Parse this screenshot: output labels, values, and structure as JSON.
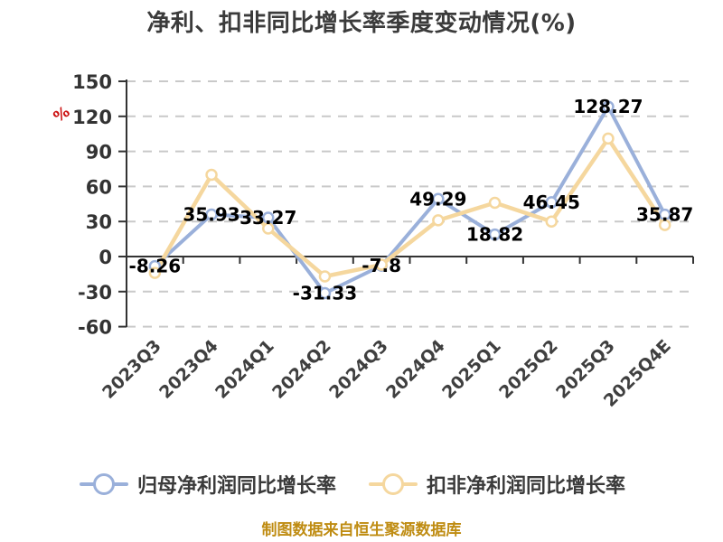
{
  "chart_data": {
    "type": "line",
    "title": "净利、扣非同比增长率季度变动情况(%)",
    "unit_label": "%",
    "categories": [
      "2023Q3",
      "2023Q4",
      "2024Q1",
      "2024Q2",
      "2024Q3",
      "2024Q4",
      "2025Q1",
      "2025Q2",
      "2025Q3",
      "2025Q4E"
    ],
    "series": [
      {
        "name": "归母净利润同比增长率",
        "color": "#9ab0da",
        "values": [
          -8.26,
          35.93,
          33.27,
          -31.33,
          -7.8,
          49.29,
          18.82,
          46.45,
          128.27,
          35.87
        ],
        "show_labels": true
      },
      {
        "name": "扣非净利润同比增长率",
        "color": "#f5d79e",
        "values": [
          -14,
          70,
          24,
          -17,
          -7,
          31,
          46,
          30,
          101,
          27
        ],
        "show_labels": false
      }
    ],
    "y_axis": {
      "min": -60,
      "max": 150,
      "ticks": [
        150,
        120,
        90,
        60,
        30,
        0,
        -30,
        -60
      ]
    },
    "grid": "horizontal-dashed",
    "legend_position": "bottom",
    "footer": "制图数据来自恒生聚源数据库",
    "colors": {
      "axis": "#333333",
      "gridline": "#c9c9c9",
      "tick_label": "#333333",
      "data_label": "#000000",
      "unit_label": "#cc1111",
      "title": "#3b3b3b",
      "footer": "#bf8c12",
      "marker_fill": "#ffffff"
    }
  }
}
